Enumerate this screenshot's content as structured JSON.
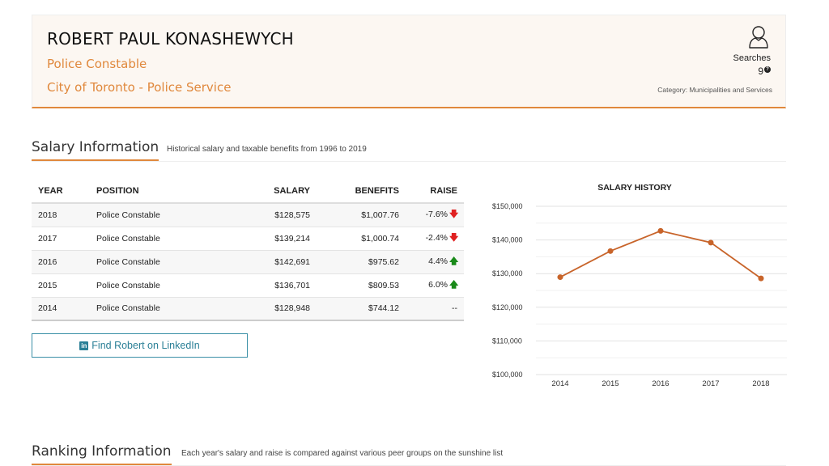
{
  "profile": {
    "name": "ROBERT PAUL KONASHEWYCH",
    "position": "Police Constable",
    "employer": "City of Toronto - Police Service",
    "searches_label": "Searches",
    "searches_count": "9",
    "help_glyph": "?",
    "category": "Category: Municipalities and Services",
    "icon": "user-icon"
  },
  "salary_section": {
    "title": "Salary Information",
    "subtitle": "Historical salary and taxable benefits from 1996 to 2019"
  },
  "salary_table": {
    "headers": {
      "year": "YEAR",
      "position": "POSITION",
      "salary": "SALARY",
      "benefits": "BENEFITS",
      "raise": "RAISE"
    },
    "rows": [
      {
        "year": "2018",
        "position": "Police Constable",
        "salary": "$128,575",
        "benefits": "$1,007.76",
        "raise": "-7.6%",
        "dir": "down"
      },
      {
        "year": "2017",
        "position": "Police Constable",
        "salary": "$139,214",
        "benefits": "$1,000.74",
        "raise": "-2.4%",
        "dir": "down"
      },
      {
        "year": "2016",
        "position": "Police Constable",
        "salary": "$142,691",
        "benefits": "$975.62",
        "raise": "4.4%",
        "dir": "up"
      },
      {
        "year": "2015",
        "position": "Police Constable",
        "salary": "$136,701",
        "benefits": "$809.53",
        "raise": "6.0%",
        "dir": "up"
      },
      {
        "year": "2014",
        "position": "Police Constable",
        "salary": "$128,948",
        "benefits": "$744.12",
        "raise": "--",
        "dir": "none"
      }
    ],
    "colors": {
      "down": "#e02020",
      "up": "#1a8a1a"
    }
  },
  "linkedin": {
    "label": "Find Robert on LinkedIn",
    "icon_glyph": "in"
  },
  "ranking_section": {
    "title": "Ranking Information",
    "subtitle": "Each year's salary and raise is compared against various peer groups on the sunshine list"
  },
  "chart_data": {
    "type": "line",
    "title": "SALARY HISTORY",
    "categories": [
      "2014",
      "2015",
      "2016",
      "2017",
      "2018"
    ],
    "series": [
      {
        "values": [
          128948,
          136701,
          142691,
          139214,
          128575
        ],
        "color": "#c8642a"
      }
    ],
    "yticks": [
      "$100,000",
      "$110,000",
      "$120,000",
      "$130,000",
      "$140,000",
      "$150,000"
    ],
    "ylim": [
      100000,
      150000
    ],
    "grid": true,
    "legend": "none"
  },
  "theme": {
    "accent": "#e0883c",
    "linkedin": "#2a7f96"
  }
}
